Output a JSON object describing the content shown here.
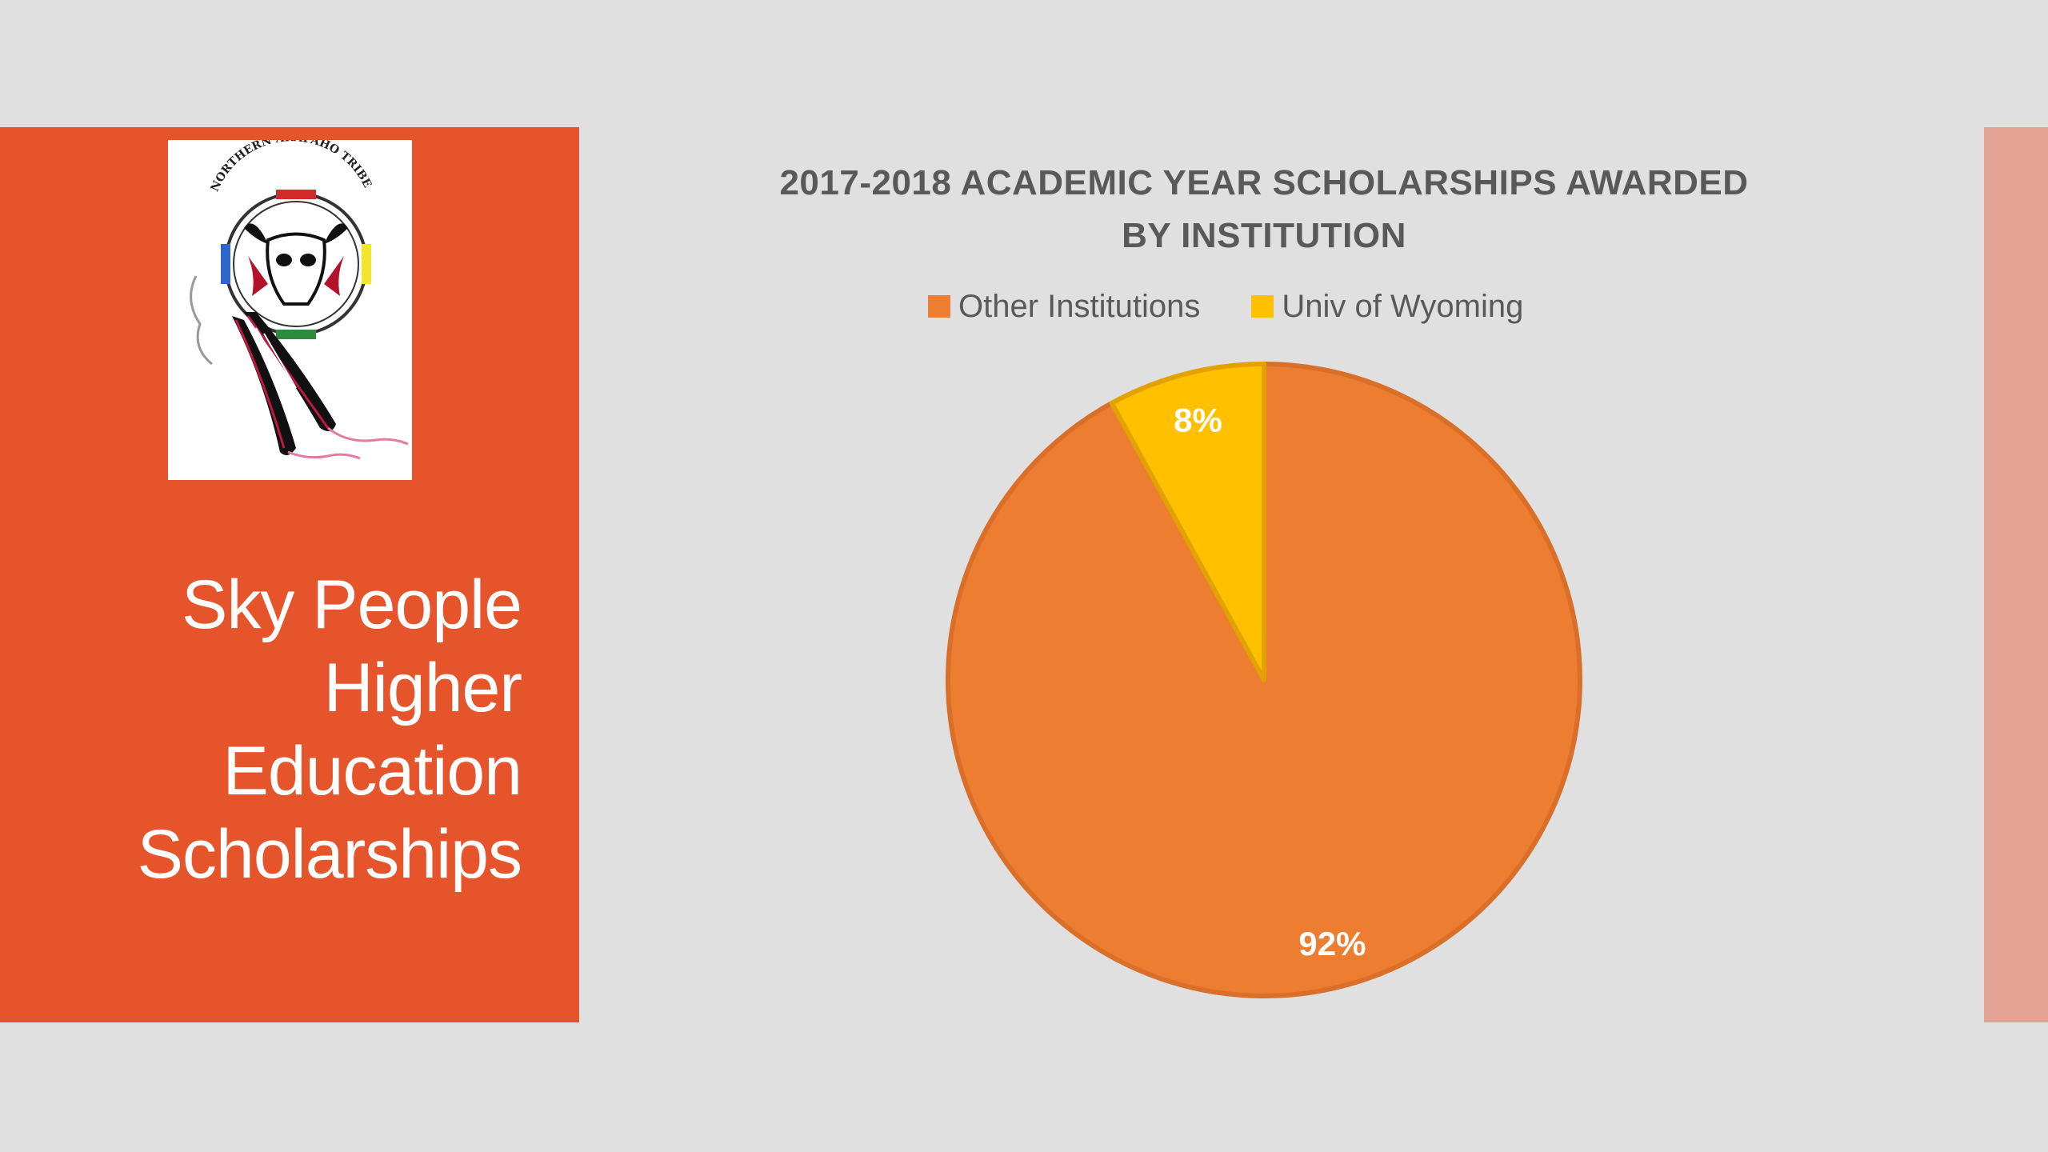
{
  "slide": {
    "title_lines": [
      "Sky People",
      "Higher",
      "Education",
      "Scholarships"
    ],
    "logo": {
      "text": "NORTHERN ARAPAHO TRIBE",
      "icon": "tribal-emblem-icon"
    },
    "colors": {
      "left_panel": "#e5542a",
      "right_strip": "#e3a394",
      "background": "#e0e0e0"
    }
  },
  "chart_data": {
    "type": "pie",
    "title_lines": [
      "2017-2018 ACADEMIC YEAR SCHOLARSHIPS AWARDED",
      "BY INSTITUTION"
    ],
    "categories": [
      "Other Institutions",
      "Univ of Wyoming"
    ],
    "values": [
      92,
      8
    ],
    "data_labels": [
      "92%",
      "8%"
    ],
    "colors": [
      "#ed7d31",
      "#ffc000"
    ],
    "start_angle_deg": 0,
    "legend_position": "top"
  }
}
